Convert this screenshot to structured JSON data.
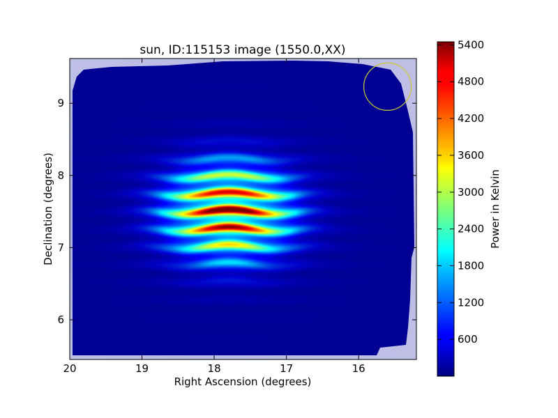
{
  "chart_data": {
    "type": "heatmap",
    "title": "sun, ID:115153 image (1550.0,XX)",
    "xlabel": "Right Ascension (degrees)",
    "ylabel": "Declination (degrees)",
    "xlim": [
      20.0,
      15.2
    ],
    "ylim": [
      5.45,
      9.62
    ],
    "x_ticks": [
      20,
      19,
      18,
      17,
      16
    ],
    "y_ticks": [
      6,
      7,
      8,
      9
    ],
    "colorbar": {
      "label": "Power in Kelvin",
      "range": [
        0,
        5450
      ],
      "ticks": [
        600,
        1200,
        1800,
        2400,
        3000,
        3600,
        4200,
        4800,
        5400
      ],
      "colormap": "jet"
    },
    "source": {
      "ra_center": 17.8,
      "dec_center": 7.5,
      "peak_kelvin": 5400,
      "background_kelvin": 150,
      "ra_extent": [
        18.9,
        16.7
      ],
      "dec_extent": [
        6.8,
        8.2
      ]
    },
    "beam_marker": {
      "ra": 15.6,
      "dec": 9.23,
      "color": "#c8c832"
    }
  }
}
